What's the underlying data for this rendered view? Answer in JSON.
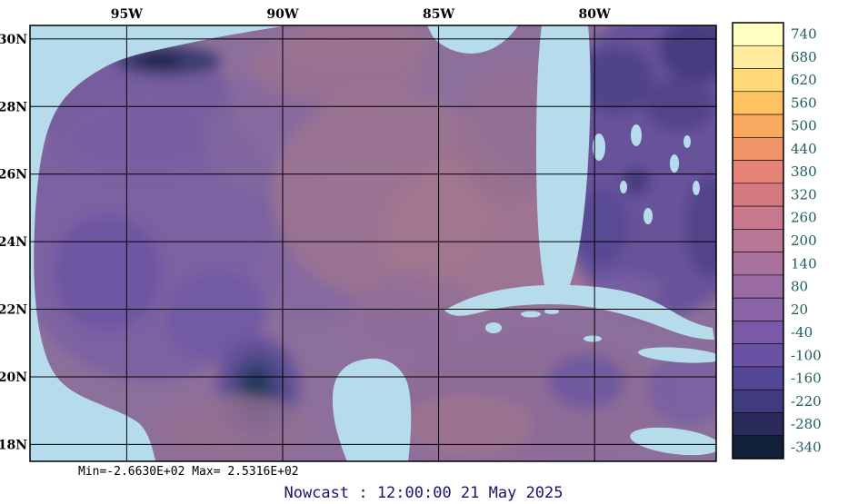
{
  "figure": {
    "minmax": "Min=-2.6630E+02  Max= 2.5316E+02",
    "caption": "Nowcast : 12:00:00  21 May 2025"
  },
  "colors": {
    "land": "#b6dcec",
    "ocean_base": "#8d6f9b",
    "frame": "#000000",
    "caption_color": "#15156b",
    "colorbar_label_color": "#1d5c5c"
  },
  "chart_data": {
    "type": "heatmap",
    "title": "Nowcast : 12:00:00  21 May 2025",
    "grid": true,
    "colorbar_position": "right",
    "lon_range": [
      -98.1,
      -76.1
    ],
    "lat_range": [
      17.5,
      30.4
    ],
    "x_ticks": [
      {
        "label": "95W",
        "lon": -95
      },
      {
        "label": "90W",
        "lon": -90
      },
      {
        "label": "85W",
        "lon": -85
      },
      {
        "label": "80W",
        "lon": -80
      }
    ],
    "y_ticks": [
      {
        "label": "30N",
        "lat": 30
      },
      {
        "label": "28N",
        "lat": 28
      },
      {
        "label": "26N",
        "lat": 26
      },
      {
        "label": "24N",
        "lat": 24
      },
      {
        "label": "22N",
        "lat": 22
      },
      {
        "label": "20N",
        "lat": 20
      },
      {
        "label": "18N",
        "lat": 18
      }
    ],
    "colorbar": {
      "values": [
        740,
        680,
        620,
        560,
        500,
        440,
        380,
        320,
        260,
        200,
        140,
        80,
        20,
        -40,
        -100,
        -160,
        -220,
        -280,
        -340
      ],
      "colors": [
        "#FFFFC6",
        "#FFEC9E",
        "#FFD87A",
        "#FFC263",
        "#F9A95E",
        "#EF9468",
        "#E48275",
        "#D67A82",
        "#C8788D",
        "#B97695",
        "#AA719C",
        "#9B6BA3",
        "#8B63A7",
        "#7A5AA8",
        "#6950A3",
        "#554797",
        "#403B7F",
        "#2A2B5B",
        "#12203A"
      ]
    },
    "stats": {
      "min": "-2.6630E+02",
      "max": "2.5316E+02"
    },
    "field_min": -266.3,
    "field_max": 253.16
  }
}
